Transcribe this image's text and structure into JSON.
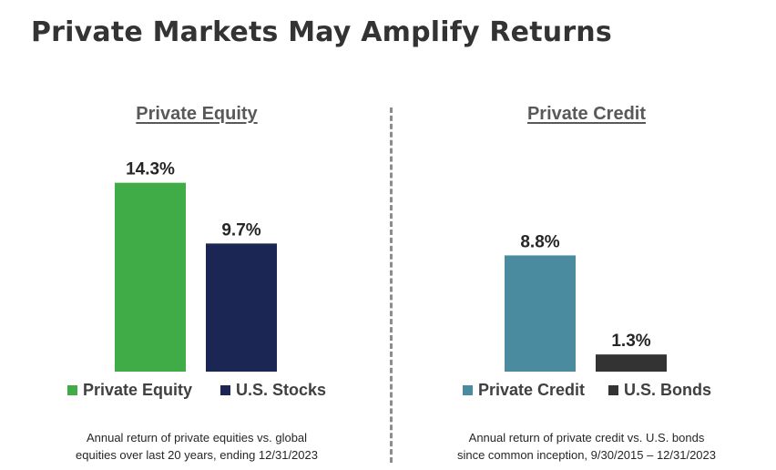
{
  "title": "Private Markets May Amplify Returns",
  "colors": {
    "private_equity": "#3fac47",
    "us_stocks": "#1b2655",
    "private_credit": "#4b8ba0",
    "us_bonds": "#333333"
  },
  "chart_data": [
    {
      "type": "bar",
      "title": "Private Equity",
      "categories": [
        "Private Equity",
        "U.S. Stocks"
      ],
      "values": [
        14.3,
        9.7
      ],
      "value_labels": [
        "14.3%",
        "9.7%"
      ],
      "legend": [
        "Private Equity",
        "U.S. Stocks"
      ],
      "legend_position": "bottom",
      "grid": false,
      "ylim": [
        0,
        16
      ],
      "caption": [
        "Annual return of private equities vs. global",
        "equities over last 20 years, ending 12/31/2023"
      ]
    },
    {
      "type": "bar",
      "title": "Private Credit",
      "categories": [
        "Private Credit",
        "U.S. Bonds"
      ],
      "values": [
        8.8,
        1.3
      ],
      "value_labels": [
        "8.8%",
        "1.3%"
      ],
      "legend": [
        "Private Credit",
        "U.S. Bonds"
      ],
      "legend_position": "bottom",
      "grid": false,
      "ylim": [
        0,
        16
      ],
      "caption": [
        "Annual return of private credit vs. U.S. bonds",
        "since common inception, 9/30/2015 – 12/31/2023"
      ]
    }
  ]
}
